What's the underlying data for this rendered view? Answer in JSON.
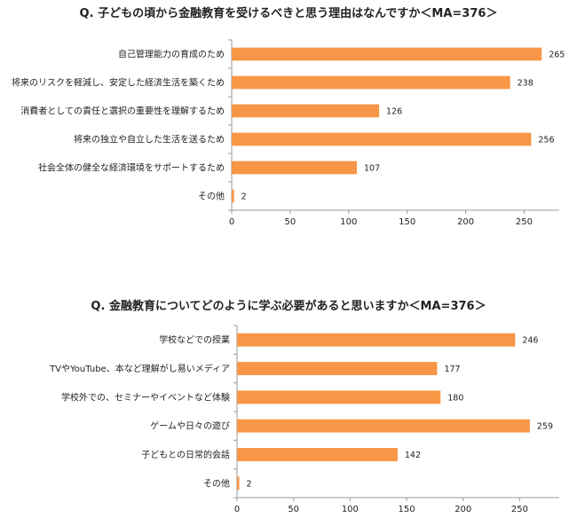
{
  "colors": {
    "bar": "#F79646",
    "axis": "#9a9a9a",
    "text": "#222222"
  },
  "chart_data": [
    {
      "type": "bar",
      "orientation": "horizontal",
      "title": "Q. 子どもの頃から金融教育を受けるべきと思う理由はなんですか＜MA=376＞",
      "categories": [
        "自己管理能力の育成のため",
        "将来のリスクを軽減し、安定した経済生活を築くため",
        "消費者としての責任と選択の重要性を理解するため",
        "将来の独立や自立した生活を送るため",
        "社会全体の健全な経済環境をサポートするため",
        "その他"
      ],
      "values": [
        265,
        238,
        126,
        256,
        107,
        2
      ],
      "xlim": [
        0,
        280
      ],
      "ticks": [
        0,
        50,
        100,
        150,
        200,
        250
      ],
      "tick_labels": [
        "0",
        "50",
        "100",
        "150",
        "200",
        "250"
      ],
      "grid": false,
      "legend": "none"
    },
    {
      "type": "bar",
      "orientation": "horizontal",
      "title": "Q. 金融教育についてどのように学ぶ必要があると思いますか＜MA=376＞",
      "categories": [
        "学校などでの授業",
        "TVやYouTube、本など理解がし易いメディア",
        "学校外での、セミナーやイベントなど体験",
        "ゲームや日々の遊び",
        "子どもとの日常的会話",
        "その他"
      ],
      "values": [
        246,
        177,
        180,
        259,
        142,
        2
      ],
      "xlim": [
        0,
        285
      ],
      "ticks": [
        0,
        50,
        100,
        150,
        200,
        250
      ],
      "tick_labels": [
        "0",
        "50",
        "100",
        "150",
        "200",
        "250"
      ],
      "grid": false,
      "legend": "none"
    }
  ]
}
